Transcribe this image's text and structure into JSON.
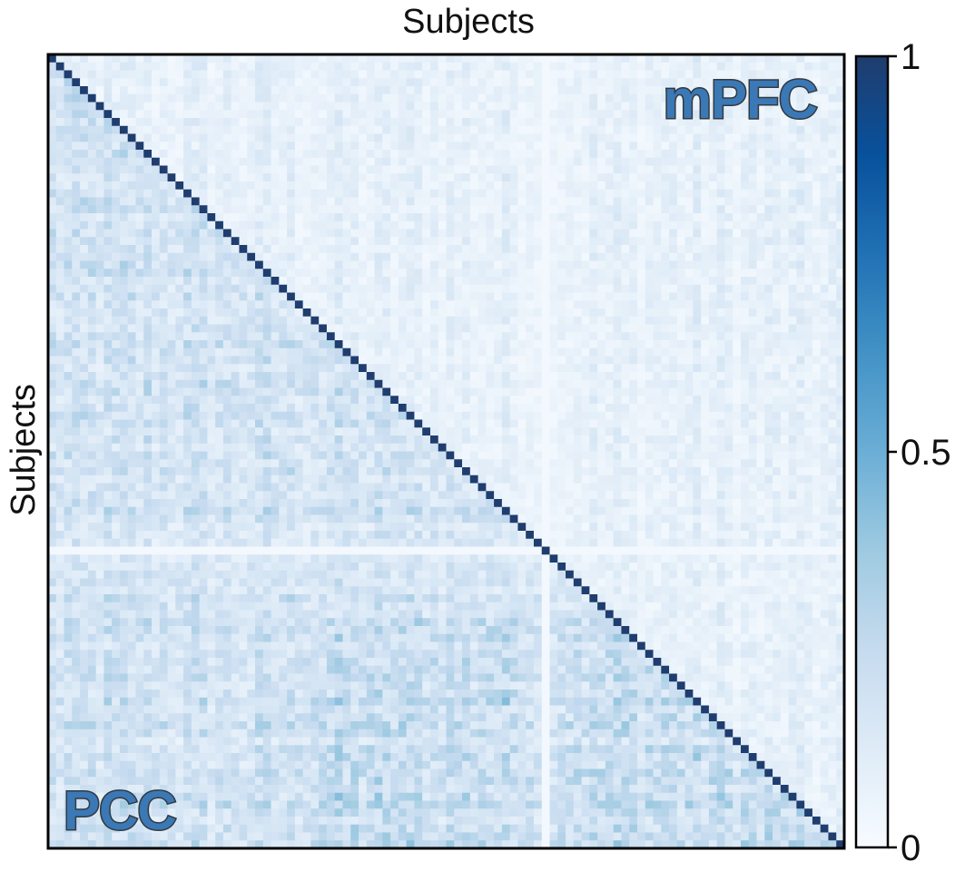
{
  "chart_data": {
    "type": "heatmap",
    "title": "",
    "xlabel": "Subjects",
    "ylabel": "Subjects",
    "n_subjects": 100,
    "diagonal_value": 1,
    "upper_triangle_region": "mPFC",
    "lower_triangle_region": "PCC",
    "upper_triangle_mean_value": 0.08,
    "lower_triangle_mean_value": 0.18,
    "lower_triangle_lower_right_mean_value": 0.22,
    "low_correlation_subject_index": 62,
    "low_correlation_subject_value": 0.02,
    "colorbar": {
      "min": 0,
      "max": 1,
      "ticks": [
        0,
        0.5,
        1
      ],
      "tick_labels": [
        "0",
        "0.5",
        "1"
      ],
      "colormap": "Blues",
      "color_stops": [
        "#f7fbff",
        "#deebf7",
        "#c6dbef",
        "#9ecae1",
        "#6baed6",
        "#4292c6",
        "#2171b5",
        "#08519c",
        "#1f3d6e"
      ]
    },
    "grid": false,
    "legend": "colorbar-right"
  }
}
